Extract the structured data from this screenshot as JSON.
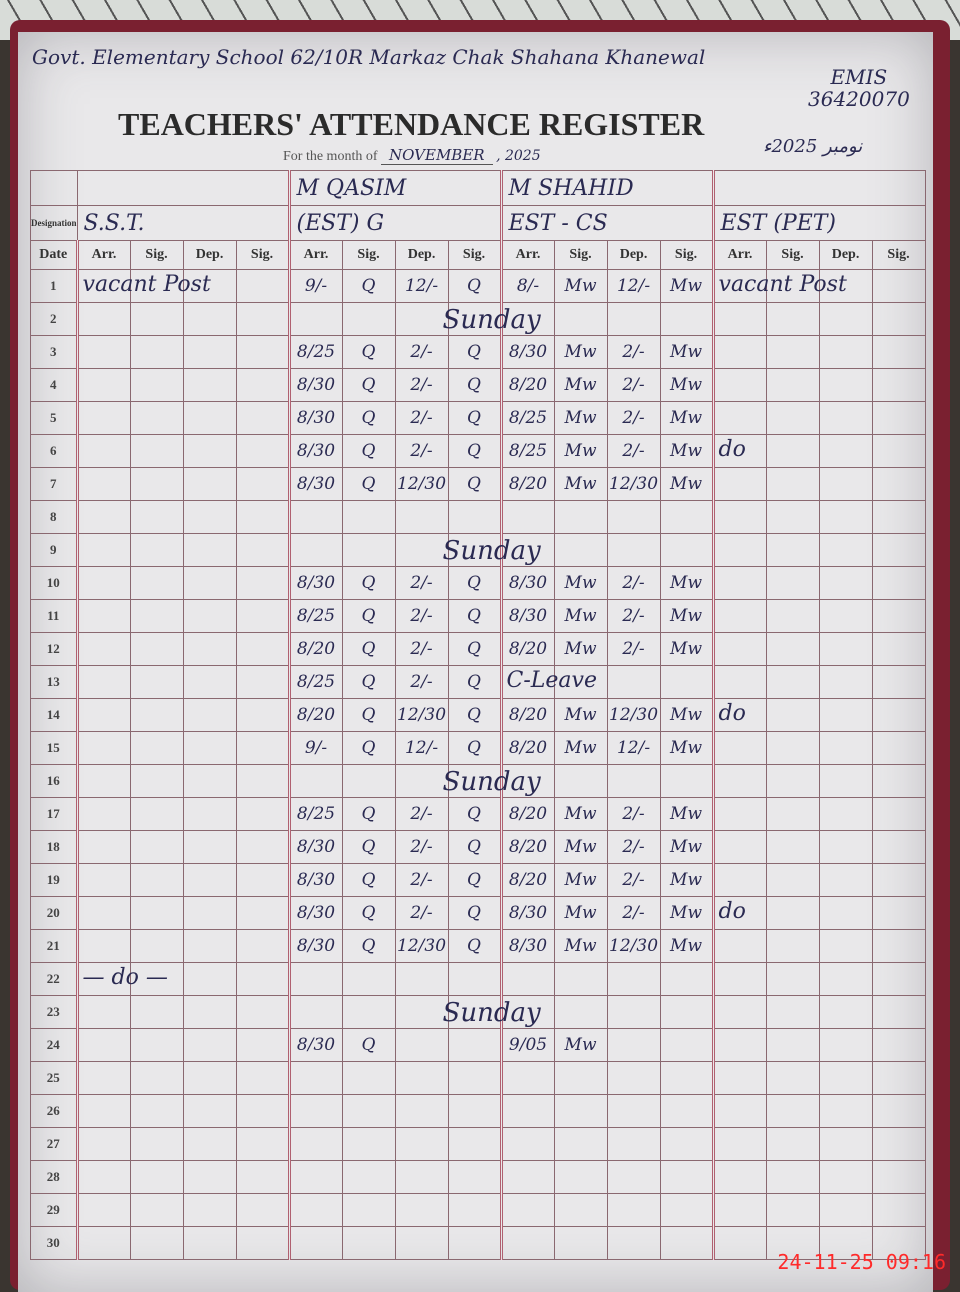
{
  "header": {
    "school_line": "Govt. Elementary School 62/10R Markaz Chak Shahana Khanewal",
    "emis_label": "EMIS",
    "emis_code": "36420070",
    "title": "TEACHERS' ATTENDANCE REGISTER",
    "month_label": "For the month of",
    "month_value": "NOVEMBER",
    "year": ", 2025",
    "urdu_date": "نومبر 2025ء"
  },
  "labels": {
    "designation": "Designation",
    "date": "Date",
    "sub": [
      "Arr.",
      "Sig.",
      "Dep.",
      "Sig."
    ]
  },
  "teachers": [
    {
      "name": "",
      "designation": "S.S.T."
    },
    {
      "name": "M QASIM",
      "designation": "(EST) G"
    },
    {
      "name": "M SHAHID",
      "designation": "EST - CS"
    },
    {
      "name": "",
      "designation": "EST (PET)"
    }
  ],
  "rows": [
    {
      "date": "1",
      "sst_note": "vacant Post",
      "q": [
        "9/-",
        "Q",
        "12/-",
        "Q"
      ],
      "s": [
        "8/-",
        "Mw",
        "12/-",
        "Mw"
      ],
      "pet_note": "vacant Post"
    },
    {
      "date": "2",
      "mid_note": "Sunday"
    },
    {
      "date": "3",
      "q": [
        "8/25",
        "Q",
        "2/-",
        "Q"
      ],
      "s": [
        "8/30",
        "Mw",
        "2/-",
        "Mw"
      ]
    },
    {
      "date": "4",
      "q": [
        "8/30",
        "Q",
        "2/-",
        "Q"
      ],
      "s": [
        "8/20",
        "Mw",
        "2/-",
        "Mw"
      ]
    },
    {
      "date": "5",
      "q": [
        "8/30",
        "Q",
        "2/-",
        "Q"
      ],
      "s": [
        "8/25",
        "Mw",
        "2/-",
        "Mw"
      ]
    },
    {
      "date": "6",
      "q": [
        "8/30",
        "Q",
        "2/-",
        "Q"
      ],
      "s": [
        "8/25",
        "Mw",
        "2/-",
        "Mw"
      ],
      "pet_note": "do"
    },
    {
      "date": "7",
      "q": [
        "8/30",
        "Q",
        "12/30",
        "Q"
      ],
      "s": [
        "8/20",
        "Mw",
        "12/30",
        "Mw"
      ]
    },
    {
      "date": "8"
    },
    {
      "date": "9",
      "mid_note": "Sunday"
    },
    {
      "date": "10",
      "q": [
        "8/30",
        "Q",
        "2/-",
        "Q"
      ],
      "s": [
        "8/30",
        "Mw",
        "2/-",
        "Mw"
      ]
    },
    {
      "date": "11",
      "q": [
        "8/25",
        "Q",
        "2/-",
        "Q"
      ],
      "s": [
        "8/30",
        "Mw",
        "2/-",
        "Mw"
      ]
    },
    {
      "date": "12",
      "q": [
        "8/20",
        "Q",
        "2/-",
        "Q"
      ],
      "s": [
        "8/20",
        "Mw",
        "2/-",
        "Mw"
      ]
    },
    {
      "date": "13",
      "q": [
        "8/25",
        "Q",
        "2/-",
        "Q"
      ],
      "s_note": "C-Leave"
    },
    {
      "date": "14",
      "q": [
        "8/20",
        "Q",
        "12/30",
        "Q"
      ],
      "s": [
        "8/20",
        "Mw",
        "12/30",
        "Mw"
      ],
      "pet_note": "do"
    },
    {
      "date": "15",
      "q": [
        "9/-",
        "Q",
        "12/-",
        "Q"
      ],
      "s": [
        "8/20",
        "Mw",
        "12/-",
        "Mw"
      ]
    },
    {
      "date": "16",
      "mid_note": "Sunday"
    },
    {
      "date": "17",
      "q": [
        "8/25",
        "Q",
        "2/-",
        "Q"
      ],
      "s": [
        "8/20",
        "Mw",
        "2/-",
        "Mw"
      ]
    },
    {
      "date": "18",
      "q": [
        "8/30",
        "Q",
        "2/-",
        "Q"
      ],
      "s": [
        "8/20",
        "Mw",
        "2/-",
        "Mw"
      ]
    },
    {
      "date": "19",
      "q": [
        "8/30",
        "Q",
        "2/-",
        "Q"
      ],
      "s": [
        "8/20",
        "Mw",
        "2/-",
        "Mw"
      ]
    },
    {
      "date": "20",
      "q": [
        "8/30",
        "Q",
        "2/-",
        "Q"
      ],
      "s": [
        "8/30",
        "Mw",
        "2/-",
        "Mw"
      ],
      "pet_note": "do"
    },
    {
      "date": "21",
      "q": [
        "8/30",
        "Q",
        "12/30",
        "Q"
      ],
      "s": [
        "8/30",
        "Mw",
        "12/30",
        "Mw"
      ]
    },
    {
      "date": "22",
      "sst_note": "— do —"
    },
    {
      "date": "23",
      "mid_note": "Sunday"
    },
    {
      "date": "24",
      "q": [
        "8/30",
        "Q",
        "",
        ""
      ],
      "s": [
        "9/05",
        "Mw",
        "",
        ""
      ]
    },
    {
      "date": "25"
    },
    {
      "date": "26"
    },
    {
      "date": "27"
    },
    {
      "date": "28"
    },
    {
      "date": "29"
    },
    {
      "date": "30"
    }
  ],
  "timestamp": "24-11-25  09:16"
}
